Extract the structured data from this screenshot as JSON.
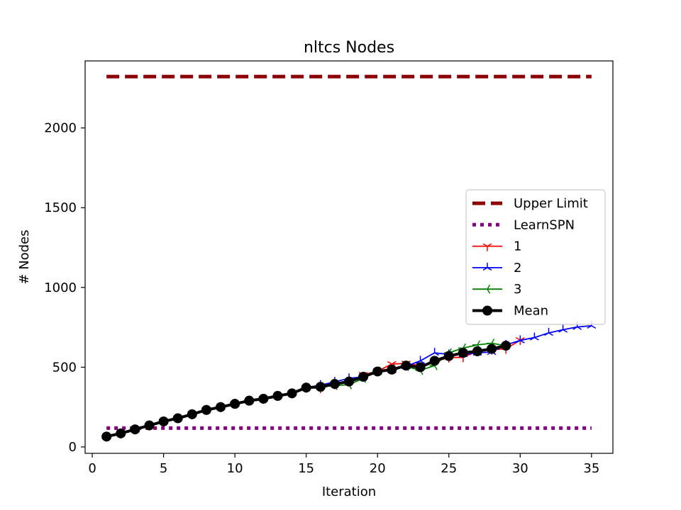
{
  "chart_data": {
    "type": "line",
    "title": "nltcs Nodes",
    "xlabel": "Iteration",
    "ylabel": "# Nodes",
    "xlim": [
      -0.5,
      36.5
    ],
    "ylim": [
      -40,
      2420
    ],
    "xticks": [
      0,
      5,
      10,
      15,
      20,
      25,
      30,
      35
    ],
    "yticks": [
      0,
      500,
      1000,
      1500,
      2000
    ],
    "grid": false,
    "legend_position": "center-right",
    "series": [
      {
        "name": "Upper Limit",
        "color": "#8b0000",
        "style": "dashed",
        "marker": "none",
        "x": [
          1,
          35
        ],
        "y": [
          2322,
          2322
        ]
      },
      {
        "name": "LearnSPN",
        "color": "#800080",
        "style": "dotted",
        "marker": "none",
        "x": [
          1,
          35
        ],
        "y": [
          118,
          118
        ]
      },
      {
        "name": "1",
        "color": "#ff0000",
        "style": "solid",
        "marker": "tri_down",
        "x": [
          1,
          2,
          3,
          4,
          5,
          6,
          7,
          8,
          9,
          10,
          11,
          12,
          13,
          14,
          15,
          16,
          17,
          18,
          19,
          20,
          21,
          22,
          23,
          24,
          25,
          26,
          27,
          28,
          29,
          30
        ],
        "y": [
          65,
          85,
          110,
          135,
          160,
          180,
          205,
          232,
          250,
          270,
          290,
          302,
          320,
          336,
          372,
          368,
          392,
          410,
          452,
          475,
          520,
          523,
          510,
          535,
          560,
          562,
          600,
          610,
          615,
          670
        ]
      },
      {
        "name": "2",
        "color": "#0000ff",
        "style": "solid",
        "marker": "tri_up",
        "x": [
          1,
          2,
          3,
          4,
          5,
          6,
          7,
          8,
          9,
          10,
          11,
          12,
          13,
          14,
          15,
          16,
          17,
          18,
          19,
          20,
          21,
          22,
          23,
          24,
          25,
          26,
          27,
          28,
          29,
          30,
          31,
          32,
          33,
          34,
          35
        ],
        "y": [
          65,
          85,
          110,
          135,
          160,
          180,
          205,
          232,
          250,
          270,
          290,
          302,
          320,
          336,
          372,
          388,
          408,
          430,
          440,
          470,
          480,
          505,
          540,
          590,
          580,
          580,
          590,
          595,
          640,
          668,
          686,
          715,
          735,
          752,
          760
        ]
      },
      {
        "name": "3",
        "color": "#008000",
        "style": "solid",
        "marker": "tri_left",
        "x": [
          1,
          2,
          3,
          4,
          5,
          6,
          7,
          8,
          9,
          10,
          11,
          12,
          13,
          14,
          15,
          16,
          17,
          18,
          19,
          20,
          21,
          22,
          23,
          24,
          25,
          26,
          27,
          28,
          29
        ],
        "y": [
          65,
          85,
          110,
          135,
          160,
          180,
          205,
          232,
          250,
          270,
          290,
          302,
          320,
          336,
          372,
          375,
          385,
          390,
          430,
          475,
          490,
          505,
          480,
          510,
          590,
          620,
          640,
          650,
          635
        ]
      },
      {
        "name": "Mean",
        "color": "#000000",
        "style": "solid",
        "marker": "circle",
        "x": [
          1,
          2,
          3,
          4,
          5,
          6,
          7,
          8,
          9,
          10,
          11,
          12,
          13,
          14,
          15,
          16,
          17,
          18,
          19,
          20,
          21,
          22,
          23,
          24,
          25,
          26,
          27,
          28,
          29
        ],
        "y": [
          65,
          85,
          110,
          135,
          160,
          180,
          205,
          232,
          250,
          270,
          290,
          302,
          320,
          336,
          372,
          377,
          395,
          410,
          440,
          473,
          485,
          510,
          500,
          540,
          570,
          590,
          600,
          615,
          635
        ]
      }
    ]
  }
}
